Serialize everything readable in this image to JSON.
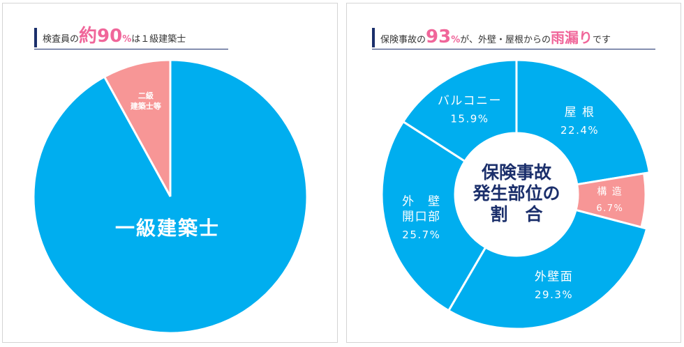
{
  "left": {
    "heading": {
      "prefix": "検査員の",
      "number": "約90",
      "unit": "%",
      "suffix": "は１級建築士"
    },
    "chart_data": {
      "type": "pie",
      "slices": [
        {
          "label": "一級建築士",
          "value": 92,
          "color": "#00aeef"
        },
        {
          "label": "二級\n建築士等",
          "value": 8,
          "color": "#f79696"
        }
      ]
    }
  },
  "right": {
    "heading": {
      "prefix": "保険事故の",
      "number": "93",
      "unit": "%",
      "mid": "が、外壁・屋根からの",
      "emph": "雨漏り",
      "suffix": "です"
    },
    "chart_data": {
      "type": "pie",
      "title": "保険事故\n発生部位の\n割　合",
      "slices": [
        {
          "label": "屋 根",
          "value": 22.4,
          "display": "22.4%",
          "color": "#00aeef"
        },
        {
          "label": "構 造",
          "value": 6.7,
          "display": "6.7%",
          "color": "#f79696"
        },
        {
          "label": "外壁面",
          "value": 29.3,
          "display": "29.3%",
          "color": "#00aeef"
        },
        {
          "label": "外　壁\n開口部",
          "value": 25.7,
          "display": "25.7%",
          "color": "#00aeef"
        },
        {
          "label": "バルコニー",
          "value": 15.9,
          "display": "15.9%",
          "color": "#00aeef"
        }
      ]
    }
  },
  "colors": {
    "navy": "#1b2f6b",
    "pink": "#f0669a",
    "blue": "#00aeef",
    "salmon": "#f79696"
  }
}
